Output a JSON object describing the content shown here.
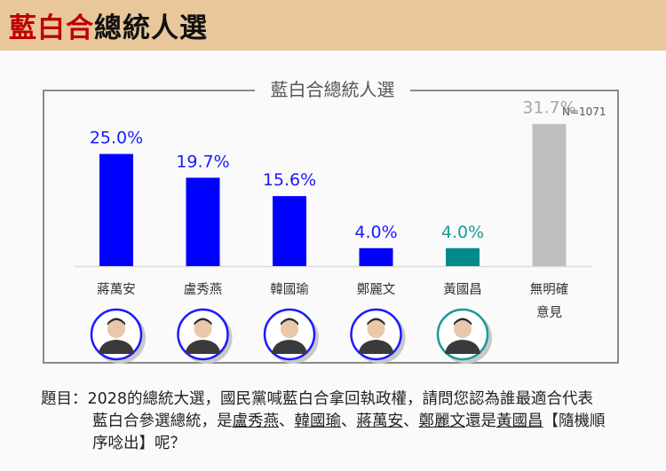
{
  "header": {
    "title_red": "藍白合",
    "title_black": "總統人選"
  },
  "chart_data": {
    "type": "bar",
    "title": "藍白合總統人選",
    "note": "N=1071",
    "categories": [
      "蔣萬安",
      "盧秀燕",
      "韓國瑜",
      "鄭麗文",
      "黃國昌",
      "無明確意見"
    ],
    "category_lines": [
      [
        "蔣萬安"
      ],
      [
        "盧秀燕"
      ],
      [
        "韓國瑜"
      ],
      [
        "鄭麗文"
      ],
      [
        "黃國昌"
      ],
      [
        "無明確",
        "意見"
      ]
    ],
    "values": [
      25.0,
      19.7,
      15.6,
      4.0,
      4.0,
      31.7
    ],
    "value_labels": [
      "25.0%",
      "19.7%",
      "15.6%",
      "4.0%",
      "4.0%",
      "31.7%"
    ],
    "ylim": [
      0,
      35
    ],
    "grid": false,
    "colors": {
      "bar": [
        "#0000ff",
        "#0000ff",
        "#0000ff",
        "#0000ff",
        "#008b8b",
        "#bfbfbf"
      ],
      "label": [
        "#1a1aff",
        "#1a1aff",
        "#1a1aff",
        "#1a1aff",
        "#1a9a9a",
        "#a6a6a6"
      ],
      "ring": [
        "#1a1aff",
        "#1a1aff",
        "#1a1aff",
        "#1a1aff",
        "#1a9a9a",
        null
      ]
    }
  },
  "question": {
    "prefix": "題目：",
    "line1": "2028的總統大選，國民黨喊藍白合拿回執政權，請問您認為誰最適合代表",
    "line2_a": "藍白合參選總統，是",
    "name1": "盧秀燕",
    "sep": "、",
    "name2": "韓國瑜",
    "name3": "蔣萬安",
    "name4": "鄭麗文",
    "mid": "還是",
    "name5": "黃國昌",
    "tail1": "【隨機順",
    "line3": "序唸出】呢？"
  }
}
